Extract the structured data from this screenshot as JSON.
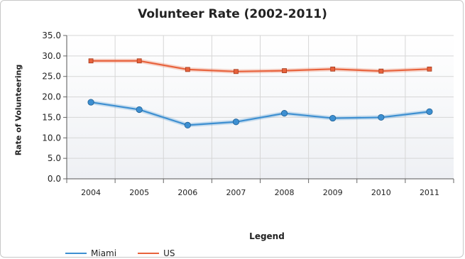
{
  "chart_data": {
    "type": "line",
    "title": "Volunteer Rate (2002-2011)",
    "xlabel": "",
    "ylabel": "Rate of Volunteering",
    "x": [
      "2004",
      "2005",
      "2006",
      "2007",
      "2008",
      "2009",
      "2010",
      "2011"
    ],
    "yticks": [
      "0.0",
      "5.0",
      "10.0",
      "15.0",
      "20.0",
      "25.0",
      "30.0",
      "35.0"
    ],
    "ylim": [
      0,
      35
    ],
    "grid": true,
    "legend_title": "Legend",
    "legend_position": "bottom",
    "series": [
      {
        "name": "Miami",
        "color": "#3d8fd1",
        "values": [
          18.7,
          16.9,
          13.1,
          13.9,
          16.0,
          14.8,
          15.0,
          16.4
        ]
      },
      {
        "name": "US",
        "color": "#e8623c",
        "values": [
          28.8,
          28.8,
          26.7,
          26.2,
          26.4,
          26.8,
          26.3,
          26.8
        ]
      }
    ]
  }
}
